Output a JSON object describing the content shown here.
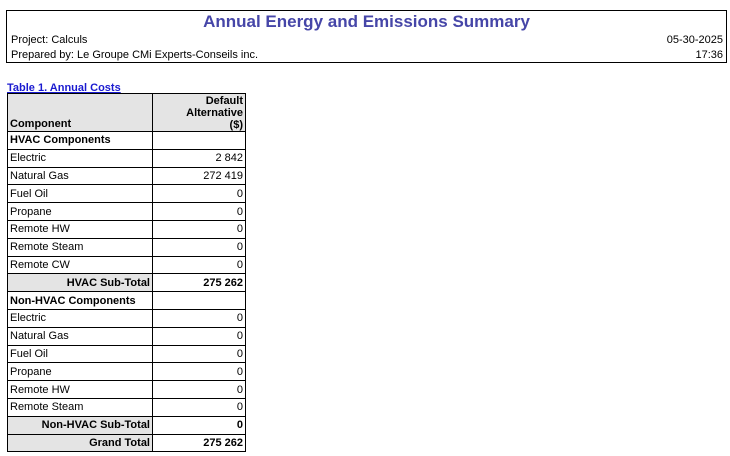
{
  "header": {
    "title": "Annual Energy and Emissions Summary",
    "project": "Project: Calculs",
    "date": "05-30-2025",
    "prepared_by": "Prepared by: Le Groupe CMi Experts-Conseils inc.",
    "time": "17:36"
  },
  "table": {
    "caption": "Table 1. Annual Costs",
    "columns": [
      "Component",
      "Default Alternative ($)"
    ],
    "sections": [
      {
        "heading": "HVAC Components",
        "rows": [
          {
            "label": "Electric",
            "value": "2 842"
          },
          {
            "label": "Natural Gas",
            "value": "272 419"
          },
          {
            "label": "Fuel Oil",
            "value": "0"
          },
          {
            "label": "Propane",
            "value": "0"
          },
          {
            "label": "Remote HW",
            "value": "0"
          },
          {
            "label": "Remote Steam",
            "value": "0"
          },
          {
            "label": "Remote CW",
            "value": "0"
          }
        ],
        "subtotal": {
          "label": "HVAC Sub-Total",
          "value": "275 262"
        }
      },
      {
        "heading": "Non-HVAC Components",
        "rows": [
          {
            "label": "Electric",
            "value": "0"
          },
          {
            "label": "Natural Gas",
            "value": "0"
          },
          {
            "label": "Fuel Oil",
            "value": "0"
          },
          {
            "label": "Propane",
            "value": "0"
          },
          {
            "label": "Remote HW",
            "value": "0"
          },
          {
            "label": "Remote Steam",
            "value": "0"
          }
        ],
        "subtotal": {
          "label": "Non-HVAC Sub-Total",
          "value": "0"
        }
      }
    ],
    "grand_total": {
      "label": "Grand Total",
      "value": "275 262"
    }
  }
}
